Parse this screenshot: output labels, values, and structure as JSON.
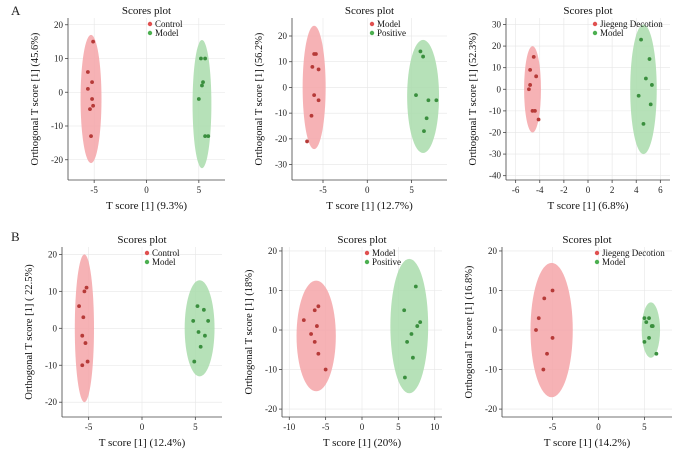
{
  "panel_labels": [
    "A",
    "B"
  ],
  "colors": {
    "red": "#e0504f",
    "red_fill": "#f4a4a8",
    "green": "#4caf50",
    "green_fill": "#a9dcab",
    "axis": "#444444",
    "grid": "#e6e6e6",
    "dot_red": "#b63a38",
    "dot_green": "#3a8f3e"
  },
  "chart_data": [
    {
      "type": "scatter",
      "title": "Scores plot",
      "xlabel": "T score [1] (9.3%)",
      "ylabel": "Orthogonal T score [1] (45.6%)",
      "xlim": [
        -7.5,
        7.5
      ],
      "ylim": [
        -26,
        22
      ],
      "xticks": [
        -5,
        0,
        5
      ],
      "yticks": [
        -20,
        -10,
        0,
        10,
        20
      ],
      "legend": [
        "Control",
        "Model"
      ],
      "series": [
        {
          "name": "Control",
          "color": "red",
          "ellipse": {
            "cx": -5.3,
            "cy": -2,
            "rx": 1.0,
            "ry": 19
          },
          "points": [
            [
              -5.1,
              15
            ],
            [
              -5.6,
              6
            ],
            [
              -5.2,
              3
            ],
            [
              -5.6,
              1
            ],
            [
              -5.2,
              -2
            ],
            [
              -5.4,
              -5
            ],
            [
              -5.1,
              -4
            ],
            [
              -5.3,
              -13
            ]
          ]
        },
        {
          "name": "Model",
          "color": "green",
          "ellipse": {
            "cx": 5.3,
            "cy": -3.5,
            "rx": 0.9,
            "ry": 19
          },
          "points": [
            [
              5.2,
              10
            ],
            [
              5.6,
              10
            ],
            [
              5.4,
              3
            ],
            [
              5.3,
              2
            ],
            [
              5.6,
              -13
            ],
            [
              5.9,
              -13
            ],
            [
              5.0,
              -2
            ]
          ]
        }
      ]
    },
    {
      "type": "scatter",
      "title": "Scores plot",
      "xlabel": "T score [1] (12.7%)",
      "ylabel": "Orthogonal T score [1] (56.2%)",
      "xlim": [
        -8.5,
        9
      ],
      "ylim": [
        -36,
        27
      ],
      "xticks": [
        -5,
        0,
        5
      ],
      "yticks": [
        -30,
        -20,
        -10,
        0,
        10,
        20
      ],
      "legend": [
        "Model",
        "Positive"
      ],
      "series": [
        {
          "name": "Model",
          "color": "red",
          "ellipse": {
            "cx": -6,
            "cy": 0,
            "rx": 1.3,
            "ry": 24
          },
          "points": [
            [
              -6.0,
              13
            ],
            [
              -5.8,
              13
            ],
            [
              -6.2,
              8
            ],
            [
              -5.5,
              7
            ],
            [
              -6.0,
              -3
            ],
            [
              -5.5,
              -5
            ],
            [
              -6.3,
              -11
            ],
            [
              -6.8,
              -21
            ]
          ]
        },
        {
          "name": "Positive",
          "color": "green",
          "ellipse": {
            "cx": 6.3,
            "cy": -3.5,
            "rx": 1.8,
            "ry": 22
          },
          "points": [
            [
              6.0,
              14
            ],
            [
              6.3,
              12
            ],
            [
              5.5,
              -3
            ],
            [
              6.9,
              -5
            ],
            [
              7.8,
              -5
            ],
            [
              6.7,
              -12
            ],
            [
              6.4,
              -17
            ]
          ]
        }
      ]
    },
    {
      "type": "scatter",
      "title": "Scores plot",
      "xlabel": "T score [1] (6.8%)",
      "ylabel": "Orthogonal T score [1] (52.3%)",
      "xlim": [
        -6.8,
        6.8
      ],
      "ylim": [
        -42,
        33
      ],
      "xticks": [
        -6,
        -4,
        -2,
        0,
        2,
        4,
        6
      ],
      "yticks": [
        -40,
        -30,
        -20,
        -10,
        0,
        10,
        20,
        30
      ],
      "legend": [
        "Jiegeng Decotion",
        "Model"
      ],
      "series": [
        {
          "name": "Jiegeng Decotion",
          "color": "red",
          "ellipse": {
            "cx": -4.6,
            "cy": 0,
            "rx": 0.7,
            "ry": 20
          },
          "points": [
            [
              -4.5,
              15
            ],
            [
              -4.8,
              9
            ],
            [
              -4.3,
              6
            ],
            [
              -4.8,
              2
            ],
            [
              -4.9,
              0
            ],
            [
              -4.6,
              -10
            ],
            [
              -4.4,
              -10
            ],
            [
              -4.1,
              -14
            ]
          ]
        },
        {
          "name": "Model",
          "color": "green",
          "ellipse": {
            "cx": 4.6,
            "cy": 0,
            "rx": 1.1,
            "ry": 30
          },
          "points": [
            [
              4.4,
              23
            ],
            [
              5.1,
              14
            ],
            [
              4.8,
              5
            ],
            [
              5.3,
              2
            ],
            [
              4.2,
              -3
            ],
            [
              5.2,
              -7
            ],
            [
              4.6,
              -16
            ]
          ]
        }
      ]
    },
    {
      "type": "scatter",
      "title": "Scores plot",
      "xlabel": "T score [1] (12.4%)",
      "ylabel": "Orthogonal T score [1] ( 22.5%)",
      "xlim": [
        -7.5,
        7.5
      ],
      "ylim": [
        -24,
        22
      ],
      "xticks": [
        -5,
        0,
        5
      ],
      "yticks": [
        -20,
        -10,
        0,
        10,
        20
      ],
      "legend": [
        "Control",
        "Model"
      ],
      "series": [
        {
          "name": "Control",
          "color": "red",
          "ellipse": {
            "cx": -5.4,
            "cy": 0,
            "rx": 0.9,
            "ry": 20
          },
          "points": [
            [
              -5.2,
              11
            ],
            [
              -5.4,
              10
            ],
            [
              -5.9,
              6
            ],
            [
              -5.5,
              3
            ],
            [
              -5.6,
              -2
            ],
            [
              -5.3,
              -4
            ],
            [
              -5.1,
              -9
            ],
            [
              -5.6,
              -10
            ]
          ]
        },
        {
          "name": "Model",
          "color": "green",
          "ellipse": {
            "cx": 5.4,
            "cy": 0,
            "rx": 1.4,
            "ry": 13
          },
          "points": [
            [
              5.2,
              6
            ],
            [
              5.8,
              5
            ],
            [
              4.8,
              2
            ],
            [
              6.2,
              2
            ],
            [
              5.3,
              -1
            ],
            [
              5.9,
              -2
            ],
            [
              5.5,
              -5
            ],
            [
              4.9,
              -9
            ]
          ]
        }
      ]
    },
    {
      "type": "scatter",
      "title": "Scores plot",
      "xlabel": "T score [1] (20%)",
      "ylabel": "Orthogonal T score [1] (18%)",
      "xlim": [
        -11,
        11
      ],
      "ylim": [
        -22,
        21
      ],
      "xticks": [
        -10,
        -5,
        0,
        5,
        10
      ],
      "yticks": [
        -20,
        -10,
        0,
        10,
        20
      ],
      "legend": [
        "Model",
        "Positive"
      ],
      "series": [
        {
          "name": "Model",
          "color": "red",
          "ellipse": {
            "cx": -6.3,
            "cy": -1.5,
            "rx": 2.7,
            "ry": 14
          },
          "points": [
            [
              -6.0,
              6
            ],
            [
              -6.5,
              5
            ],
            [
              -8.0,
              2.5
            ],
            [
              -6.2,
              1
            ],
            [
              -7.0,
              -1
            ],
            [
              -6.5,
              -3
            ],
            [
              -6.0,
              -6
            ],
            [
              -5.0,
              -10
            ]
          ]
        },
        {
          "name": "Positive",
          "color": "green",
          "ellipse": {
            "cx": 6.5,
            "cy": 1,
            "rx": 2.6,
            "ry": 17
          },
          "points": [
            [
              7.4,
              11
            ],
            [
              5.8,
              5
            ],
            [
              8.0,
              2
            ],
            [
              7.6,
              1
            ],
            [
              6.8,
              -1
            ],
            [
              6.2,
              -3
            ],
            [
              7.0,
              -7
            ],
            [
              5.9,
              -12
            ]
          ]
        }
      ]
    },
    {
      "type": "scatter",
      "title": "Scores plot",
      "xlabel": "T score [1] (14.2%)",
      "ylabel": "Orthogonal T score [1] (16.8%)",
      "xlim": [
        -10.5,
        8
      ],
      "ylim": [
        -22,
        21
      ],
      "xticks": [
        -5,
        0,
        5
      ],
      "yticks": [
        -20,
        -10,
        0,
        10,
        20
      ],
      "legend": [
        "Jiegeng Decotion",
        "Model"
      ],
      "series": [
        {
          "name": "Jiegeng Decotion",
          "color": "red",
          "ellipse": {
            "cx": -5.1,
            "cy": 0,
            "rx": 2.3,
            "ry": 17
          },
          "points": [
            [
              -5.9,
              8
            ],
            [
              -5.0,
              10
            ],
            [
              -6.5,
              3
            ],
            [
              -5.0,
              -2
            ],
            [
              -5.6,
              -6
            ],
            [
              -6.0,
              -10
            ],
            [
              -6.8,
              0
            ]
          ]
        },
        {
          "name": "Model",
          "color": "green",
          "ellipse": {
            "cx": 5.7,
            "cy": 0,
            "rx": 1.0,
            "ry": 7
          },
          "points": [
            [
              5.0,
              3
            ],
            [
              5.5,
              3
            ],
            [
              5.2,
              2
            ],
            [
              5.9,
              1
            ],
            [
              5.5,
              -2
            ],
            [
              5.0,
              -3
            ],
            [
              6.3,
              -6
            ],
            [
              5.8,
              1
            ]
          ]
        }
      ]
    }
  ]
}
